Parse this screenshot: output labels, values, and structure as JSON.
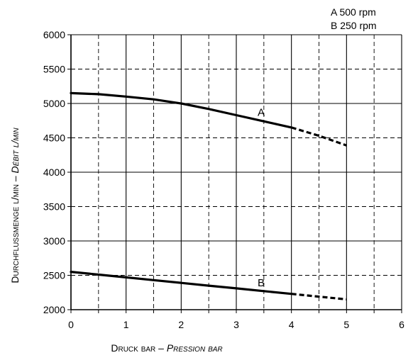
{
  "chart_data": {
    "type": "line",
    "xlabel": {
      "main": "Druck bar",
      "separator": " – ",
      "italic": "Pression bar"
    },
    "ylabel": {
      "main": "Durchflußmenge l/min",
      "separator": " – ",
      "italic": "Débit l/min"
    },
    "xlim": [
      0,
      6
    ],
    "ylim": [
      2000,
      6000
    ],
    "x_ticks": [
      "0",
      "1",
      "2",
      "3",
      "4",
      "5",
      "6"
    ],
    "y_ticks": [
      "2000",
      "2500",
      "3000",
      "3500",
      "4000",
      "4500",
      "5000",
      "5500",
      "6000"
    ],
    "grid": "solid at integer x and every 1000 l/min, dashed at half steps",
    "legend": [
      "A 500 rpm",
      "B 250 rpm"
    ],
    "series": [
      {
        "name": "A",
        "x": [
          0,
          0.5,
          1,
          1.5,
          2,
          2.5,
          3,
          3.5,
          4
        ],
        "values": [
          5150,
          5135,
          5100,
          5060,
          5000,
          4920,
          4830,
          4740,
          4650
        ],
        "dashed_continuation": {
          "x": [
            4,
            4.5,
            5
          ],
          "values": [
            4650,
            4530,
            4390
          ]
        }
      },
      {
        "name": "B",
        "x": [
          0,
          0.5,
          1,
          1.5,
          2,
          2.5,
          3,
          3.5,
          4
        ],
        "values": [
          2550,
          2510,
          2470,
          2430,
          2390,
          2350,
          2310,
          2270,
          2230
        ],
        "dashed_continuation": {
          "x": [
            4,
            4.5,
            5
          ],
          "values": [
            2230,
            2190,
            2150
          ]
        }
      }
    ],
    "curve_labels": [
      {
        "text": "A",
        "x": 3.45,
        "y": 4820
      },
      {
        "text": "B",
        "x": 3.45,
        "y": 2340
      }
    ]
  }
}
